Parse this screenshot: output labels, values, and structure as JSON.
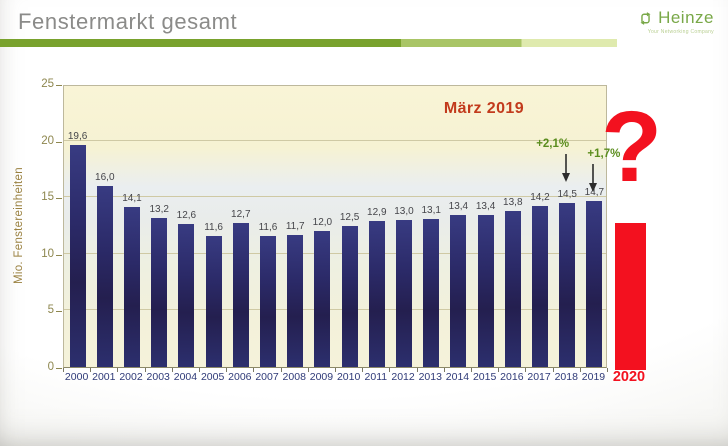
{
  "header": {
    "title": "Fenstermarkt gesamt",
    "logo": {
      "name": "Heinze",
      "tagline": "Your Networking Company"
    }
  },
  "chart_data": {
    "type": "bar",
    "title": "Fenstermarkt gesamt",
    "ylabel": "Mio. Fenstereinheiten",
    "ylim": [
      0,
      25
    ],
    "yticks": [
      0,
      5,
      10,
      15,
      20,
      25
    ],
    "grid": true,
    "legend": "none",
    "categories": [
      "2000",
      "2001",
      "2002",
      "2003",
      "2004",
      "2005",
      "2006",
      "2007",
      "2008",
      "2009",
      "2010",
      "2011",
      "2012",
      "2013",
      "2014",
      "2015",
      "2016",
      "2017",
      "2018",
      "2019"
    ],
    "values": [
      19.6,
      16.0,
      14.1,
      13.2,
      12.6,
      11.6,
      12.7,
      11.6,
      11.7,
      12.0,
      12.5,
      12.9,
      13.0,
      13.1,
      13.4,
      13.4,
      13.8,
      14.2,
      14.5,
      14.7
    ],
    "value_label_format": "german-comma-1-decimal",
    "bar_color": "#2c2f6e",
    "status_label": "März 2019",
    "annotations": [
      {
        "category": "2018",
        "text": "+2,1%"
      },
      {
        "category": "2019",
        "text": "+1,7%"
      }
    ],
    "future": {
      "category": "2020",
      "marker": "?",
      "color": "#f3111f"
    }
  }
}
